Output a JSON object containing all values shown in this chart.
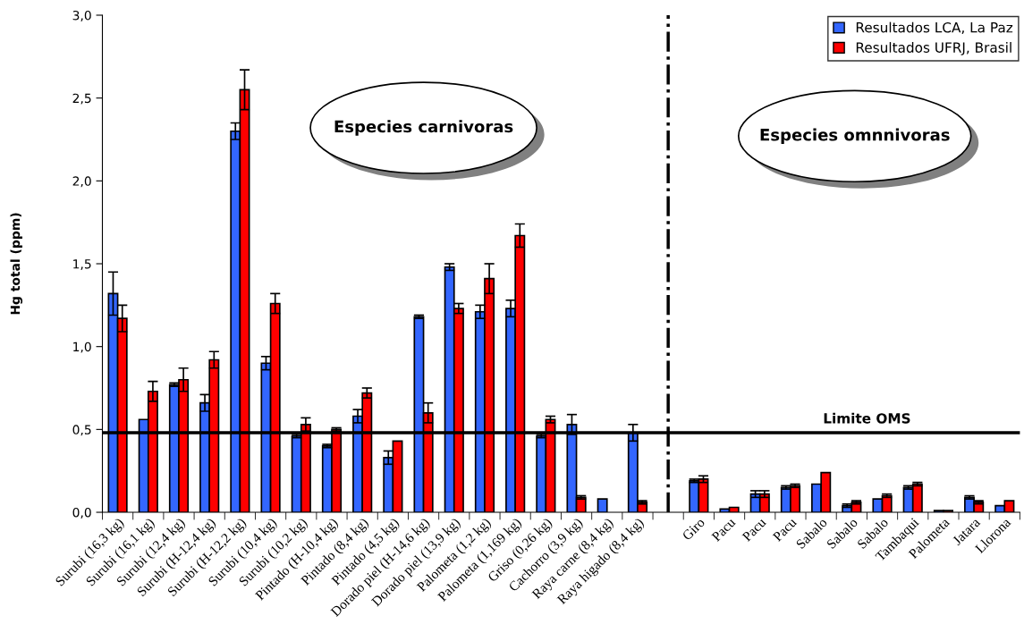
{
  "chart_data": {
    "type": "bar",
    "ylabel": "Hg total (ppm)",
    "categories": [
      "Surubi (16,3 kg)",
      "Surubi (16,1 kg)",
      "Surubi (12,4 kg)",
      "Surubi (H-12,4 kg)",
      "Surubi (H-12,2 kg)",
      "Surubi (10,4 kg)",
      "Surubi (10,2 kg)",
      "Pintado (H-10,4 kg)",
      "Pintado (8,4 kg)",
      "Pintado (4,5 kg)",
      "Dorado piel (H-14,6 kg)",
      "Dorado piel (13,9 kg)",
      "Palometa (1,2 kg)",
      "Palometa (1,169 kg)",
      "Griso (0,26 kg)",
      "Cachorro (3,9 kg)",
      "Raya carne (8,4 kg)",
      "Raya higado (8,4 kg)",
      null,
      "Giro",
      "Pacu",
      "Pacu",
      "Pacu",
      "Sabalo",
      "Sabalo",
      "Sabalo",
      "Tambaqui",
      "Palometa",
      "Jatara",
      "Llorona"
    ],
    "series": [
      {
        "name": "Resultados LCA, La Paz",
        "color": "#3366ff",
        "values": [
          1.32,
          0.56,
          0.77,
          0.66,
          2.3,
          0.9,
          0.46,
          0.4,
          0.58,
          0.33,
          1.18,
          1.48,
          1.21,
          1.23,
          0.46,
          0.53,
          0.08,
          0.48,
          null,
          0.19,
          0.02,
          0.11,
          0.15,
          0.17,
          0.04,
          0.08,
          0.15,
          0.01,
          0.09,
          0.04
        ],
        "errors": [
          0.13,
          null,
          0.01,
          0.05,
          0.05,
          0.04,
          0.01,
          0.01,
          0.04,
          0.04,
          0.01,
          0.02,
          0.04,
          0.05,
          0.01,
          0.06,
          null,
          0.05,
          null,
          0.01,
          null,
          0.02,
          0.01,
          null,
          0.01,
          null,
          0.01,
          null,
          0.01,
          null
        ]
      },
      {
        "name": "Resultados UFRJ, Brasil",
        "color": "#ff0000",
        "values": [
          1.17,
          0.73,
          0.8,
          0.92,
          2.55,
          1.26,
          0.53,
          0.5,
          0.72,
          0.43,
          0.6,
          1.23,
          1.41,
          1.67,
          0.56,
          0.09,
          null,
          0.06,
          null,
          0.2,
          0.03,
          0.11,
          0.16,
          0.24,
          0.06,
          0.1,
          0.17,
          0.01,
          0.06,
          0.07
        ],
        "errors": [
          0.08,
          0.06,
          0.07,
          0.05,
          0.12,
          0.06,
          0.04,
          0.01,
          0.03,
          null,
          0.06,
          0.03,
          0.09,
          0.07,
          0.02,
          0.01,
          null,
          0.01,
          null,
          0.02,
          null,
          0.02,
          0.01,
          null,
          0.01,
          0.01,
          0.01,
          null,
          0.01,
          null
        ]
      }
    ],
    "ylim": [
      0,
      3.0
    ],
    "yticks": [
      {
        "value": 0,
        "label": "0,0"
      },
      {
        "value": 0.5,
        "label": "0,5"
      },
      {
        "value": 1.0,
        "label": "1,0"
      },
      {
        "value": 1.5,
        "label": "1,5"
      },
      {
        "value": 2.0,
        "label": "2,0"
      },
      {
        "value": 2.5,
        "label": "2,5"
      },
      {
        "value": 3.0,
        "label": "3,0"
      }
    ],
    "ref_lines": [
      {
        "axis": "y",
        "value": 0.48,
        "label": "Limite OMS",
        "color": "#000000",
        "line_style": "solid"
      },
      {
        "axis": "x",
        "value": null,
        "color": "#000000",
        "line_style": "dashdot"
      }
    ],
    "annotations": [
      "Especies carnivoras",
      "Especies omnnivoras"
    ],
    "legend": "top right"
  }
}
